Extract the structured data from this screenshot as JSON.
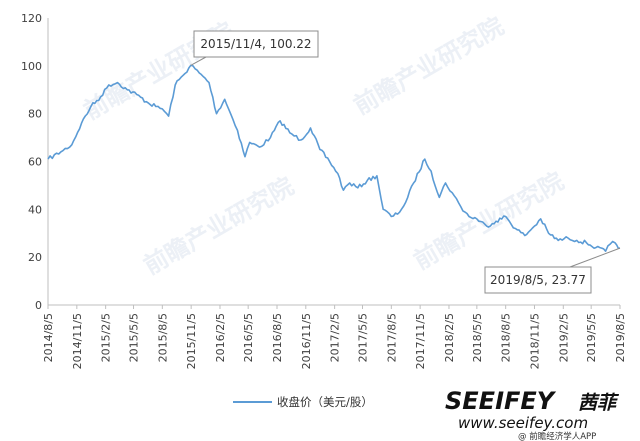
{
  "chart_data": {
    "type": "line",
    "x_tick_labels": [
      "2014/8/5",
      "2014/11/5",
      "2015/2/5",
      "2015/5/5",
      "2015/8/5",
      "2015/11/5",
      "2016/2/5",
      "2016/5/5",
      "2016/8/5",
      "2016/11/5",
      "2017/2/5",
      "2017/5/5",
      "2017/8/5",
      "2017/11/5",
      "2018/2/5",
      "2018/5/5",
      "2018/8/5",
      "2018/11/5",
      "2019/2/5",
      "2019/5/5",
      "2019/8/5"
    ],
    "y_tick_labels": [
      "0",
      "20",
      "40",
      "60",
      "80",
      "100",
      "120"
    ],
    "ylim": [
      0,
      120
    ],
    "grid": false,
    "legend_position": "bottom",
    "series": [
      {
        "name": "收盘价（美元/股）",
        "color": "#5b9bd5",
        "points": [
          [
            "2014/8/5",
            61
          ],
          [
            "2014/9/15",
            64
          ],
          [
            "2014/10/20",
            67
          ],
          [
            "2014/11/20",
            76
          ],
          [
            "2014/12/20",
            83
          ],
          [
            "2015/1/20",
            87
          ],
          [
            "2015/2/15",
            92
          ],
          [
            "2015/3/15",
            93
          ],
          [
            "2015/4/15",
            90
          ],
          [
            "2015/5/15",
            88
          ],
          [
            "2015/6/15",
            85
          ],
          [
            "2015/7/15",
            83
          ],
          [
            "2015/8/5",
            82
          ],
          [
            "2015/8/25",
            79
          ],
          [
            "2015/9/15",
            92
          ],
          [
            "2015/10/10",
            96
          ],
          [
            "2015/11/4",
            100.22
          ],
          [
            "2015/12/1",
            97
          ],
          [
            "2016/1/1",
            93
          ],
          [
            "2016/1/25",
            80
          ],
          [
            "2016/2/20",
            86
          ],
          [
            "2016/3/10",
            80
          ],
          [
            "2016/4/1",
            73
          ],
          [
            "2016/4/25",
            62
          ],
          [
            "2016/5/10",
            68
          ],
          [
            "2016/6/10",
            66
          ],
          [
            "2016/7/15",
            70
          ],
          [
            "2016/8/15",
            77
          ],
          [
            "2016/9/15",
            72
          ],
          [
            "2016/10/20",
            69
          ],
          [
            "2016/11/20",
            74
          ],
          [
            "2016/12/20",
            65
          ],
          [
            "2017/1/20",
            60
          ],
          [
            "2017/2/15",
            55
          ],
          [
            "2017/3/5",
            48
          ],
          [
            "2017/3/25",
            51
          ],
          [
            "2017/4/20",
            49
          ],
          [
            "2017/5/20",
            52
          ],
          [
            "2017/6/20",
            54
          ],
          [
            "2017/7/10",
            40
          ],
          [
            "2017/8/5",
            37
          ],
          [
            "2017/8/25",
            38
          ],
          [
            "2017/9/20",
            43
          ],
          [
            "2017/10/15",
            51
          ],
          [
            "2017/11/20",
            61
          ],
          [
            "2017/12/10",
            56
          ],
          [
            "2018/1/5",
            45
          ],
          [
            "2018/1/25",
            51
          ],
          [
            "2018/2/15",
            47
          ],
          [
            "2018/3/15",
            41
          ],
          [
            "2018/4/10",
            37
          ],
          [
            "2018/5/5",
            36
          ],
          [
            "2018/6/5",
            33
          ],
          [
            "2018/7/5",
            35
          ],
          [
            "2018/8/5",
            37
          ],
          [
            "2018/9/5",
            32
          ],
          [
            "2018/10/5",
            29
          ],
          [
            "2018/11/5",
            33
          ],
          [
            "2018/11/25",
            36
          ],
          [
            "2018/12/20",
            30
          ],
          [
            "2019/1/20",
            27
          ],
          [
            "2019/2/20",
            28
          ],
          [
            "2019/3/20",
            27
          ],
          [
            "2019/4/20",
            26
          ],
          [
            "2019/5/20",
            24
          ],
          [
            "2019/6/20",
            22.5
          ],
          [
            "2019/7/5",
            25.5
          ],
          [
            "2019/7/20",
            26
          ],
          [
            "2019/8/5",
            23.77
          ]
        ]
      }
    ],
    "annotations": [
      {
        "text": "2015/11/4, 100.22",
        "x": "2015/11/4",
        "y": 100.22
      },
      {
        "text": "2019/8/5, 23.77",
        "x": "2019/8/5",
        "y": 23.77
      }
    ]
  },
  "watermark": {
    "text": "前瞻产业研究院",
    "brand": "SEEIFEY",
    "brand_cn": "茜菲",
    "url": "www.seeifey.com",
    "sub": "@ 前瞻经济学人APP"
  }
}
